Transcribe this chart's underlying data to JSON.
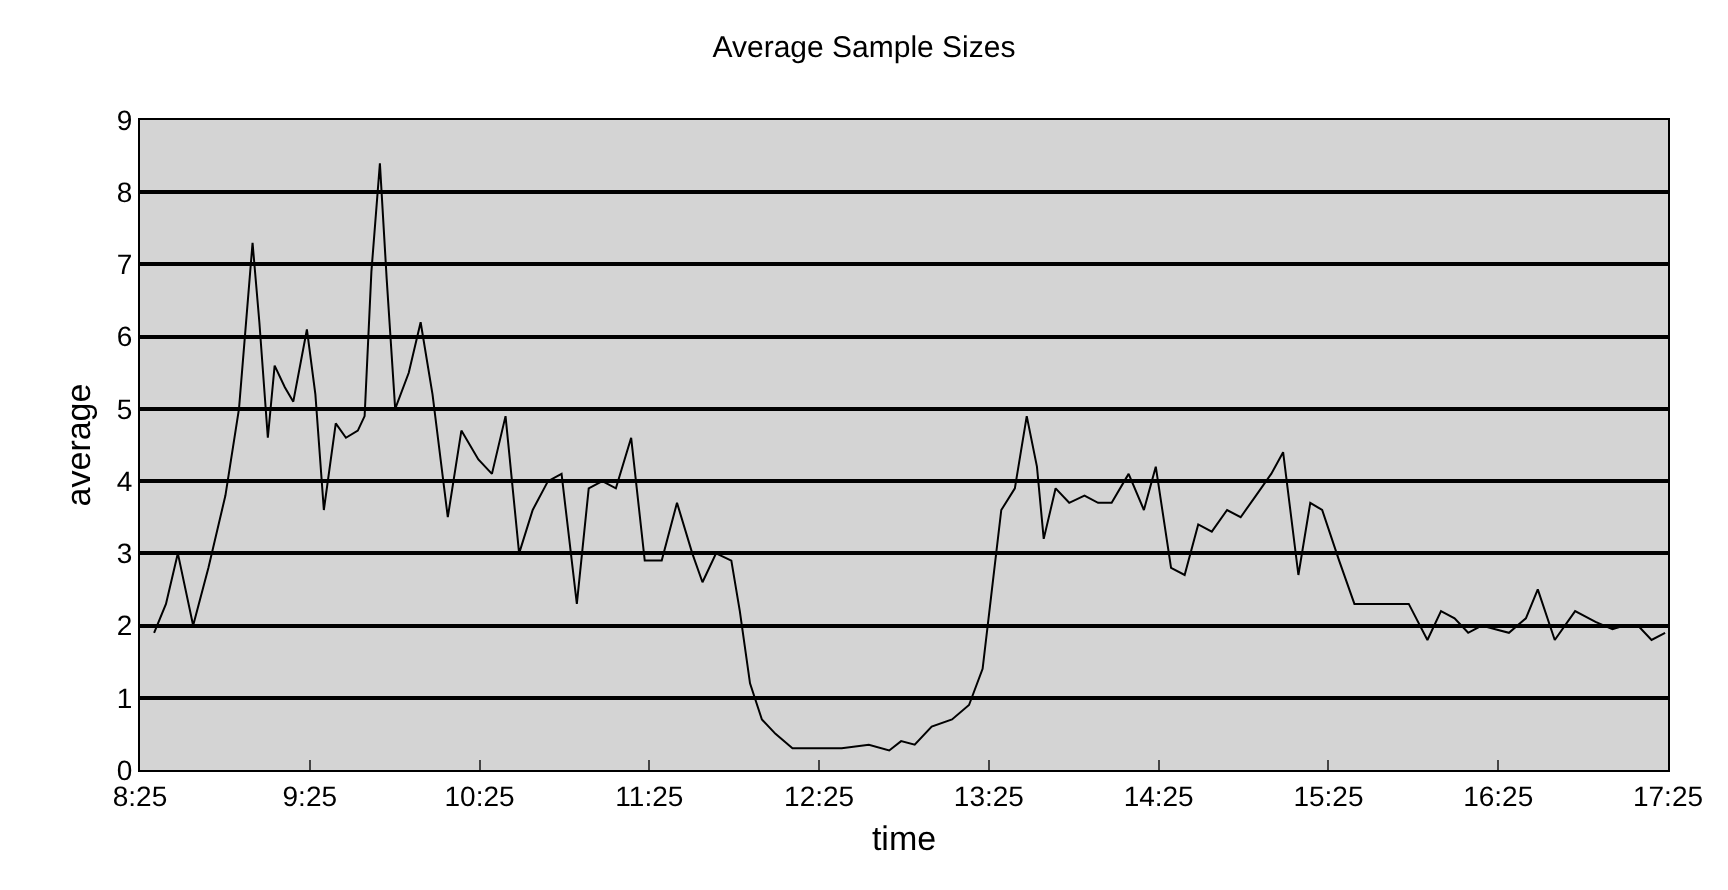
{
  "chart_data": {
    "type": "line",
    "title": "Average Sample Sizes",
    "xlabel": "time",
    "ylabel": "average",
    "xlim": [
      8.417,
      17.417
    ],
    "xticks": [
      {
        "value": 8.417,
        "label": "8:25"
      },
      {
        "value": 9.417,
        "label": "9:25"
      },
      {
        "value": 10.417,
        "label": "10:25"
      },
      {
        "value": 11.417,
        "label": "11:25"
      },
      {
        "value": 12.417,
        "label": "12:25"
      },
      {
        "value": 13.417,
        "label": "13:25"
      },
      {
        "value": 14.417,
        "label": "14:25"
      },
      {
        "value": 15.417,
        "label": "15:25"
      },
      {
        "value": 16.417,
        "label": "16:25"
      },
      {
        "value": 17.417,
        "label": "17:25"
      }
    ],
    "ylim": [
      0,
      9
    ],
    "yticks": [
      0,
      1,
      2,
      3,
      4,
      5,
      6,
      7,
      8,
      9
    ],
    "grid": "y",
    "marker": "none",
    "line_style": "solid",
    "series": [
      {
        "color": "#000000",
        "x": [
          8.5,
          8.57,
          8.64,
          8.73,
          8.82,
          8.92,
          9.0,
          9.08,
          9.12,
          9.17,
          9.21,
          9.27,
          9.32,
          9.4,
          9.45,
          9.5,
          9.57,
          9.63,
          9.7,
          9.74,
          9.78,
          9.83,
          9.87,
          9.92,
          10.0,
          10.07,
          10.14,
          10.23,
          10.31,
          10.41,
          10.49,
          10.57,
          10.65,
          10.73,
          10.82,
          10.9,
          10.99,
          11.06,
          11.14,
          11.22,
          11.31,
          11.39,
          11.49,
          11.58,
          11.67,
          11.73,
          11.81,
          11.9,
          11.95,
          12.01,
          12.08,
          12.16,
          12.26,
          12.39,
          12.55,
          12.71,
          12.83,
          12.9,
          12.98,
          13.08,
          13.2,
          13.3,
          13.38,
          13.43,
          13.49,
          13.57,
          13.64,
          13.7,
          13.74,
          13.81,
          13.89,
          13.98,
          14.06,
          14.14,
          14.24,
          14.33,
          14.4,
          14.49,
          14.57,
          14.65,
          14.73,
          14.82,
          14.9,
          14.99,
          15.08,
          15.15,
          15.24,
          15.31,
          15.38,
          15.48,
          15.57,
          15.65,
          15.77,
          15.89,
          16.0,
          16.08,
          16.16,
          16.24,
          16.32,
          16.4,
          16.48,
          16.58,
          16.65,
          16.75,
          16.87,
          16.99,
          17.09,
          17.16,
          17.24,
          17.32,
          17.4
        ],
        "values": [
          1.9,
          2.3,
          3.0,
          2.0,
          2.8,
          3.8,
          5.0,
          7.3,
          6.2,
          4.6,
          5.6,
          5.3,
          5.1,
          6.1,
          5.2,
          3.6,
          4.8,
          4.6,
          4.7,
          4.9,
          6.9,
          8.4,
          6.8,
          5.0,
          5.5,
          6.2,
          5.2,
          3.5,
          4.7,
          4.3,
          4.1,
          4.9,
          3.0,
          3.6,
          4.0,
          4.1,
          2.3,
          3.9,
          4.0,
          3.9,
          4.6,
          2.9,
          2.9,
          3.7,
          3.0,
          2.6,
          3.0,
          2.9,
          2.2,
          1.2,
          0.7,
          0.5,
          0.3,
          0.3,
          0.3,
          0.35,
          0.27,
          0.4,
          0.35,
          0.6,
          0.7,
          0.9,
          1.4,
          2.4,
          3.6,
          3.9,
          4.9,
          4.2,
          3.2,
          3.9,
          3.7,
          3.8,
          3.7,
          3.7,
          4.1,
          3.6,
          4.2,
          2.8,
          2.7,
          3.4,
          3.3,
          3.6,
          3.5,
          3.8,
          4.1,
          4.4,
          2.7,
          3.7,
          3.6,
          2.9,
          2.3,
          2.3,
          2.3,
          2.3,
          1.8,
          2.2,
          2.1,
          1.9,
          2.0,
          1.95,
          1.9,
          2.1,
          2.5,
          1.8,
          2.2,
          2.05,
          1.95,
          2.0,
          2.0,
          1.8,
          1.9
        ]
      }
    ]
  }
}
